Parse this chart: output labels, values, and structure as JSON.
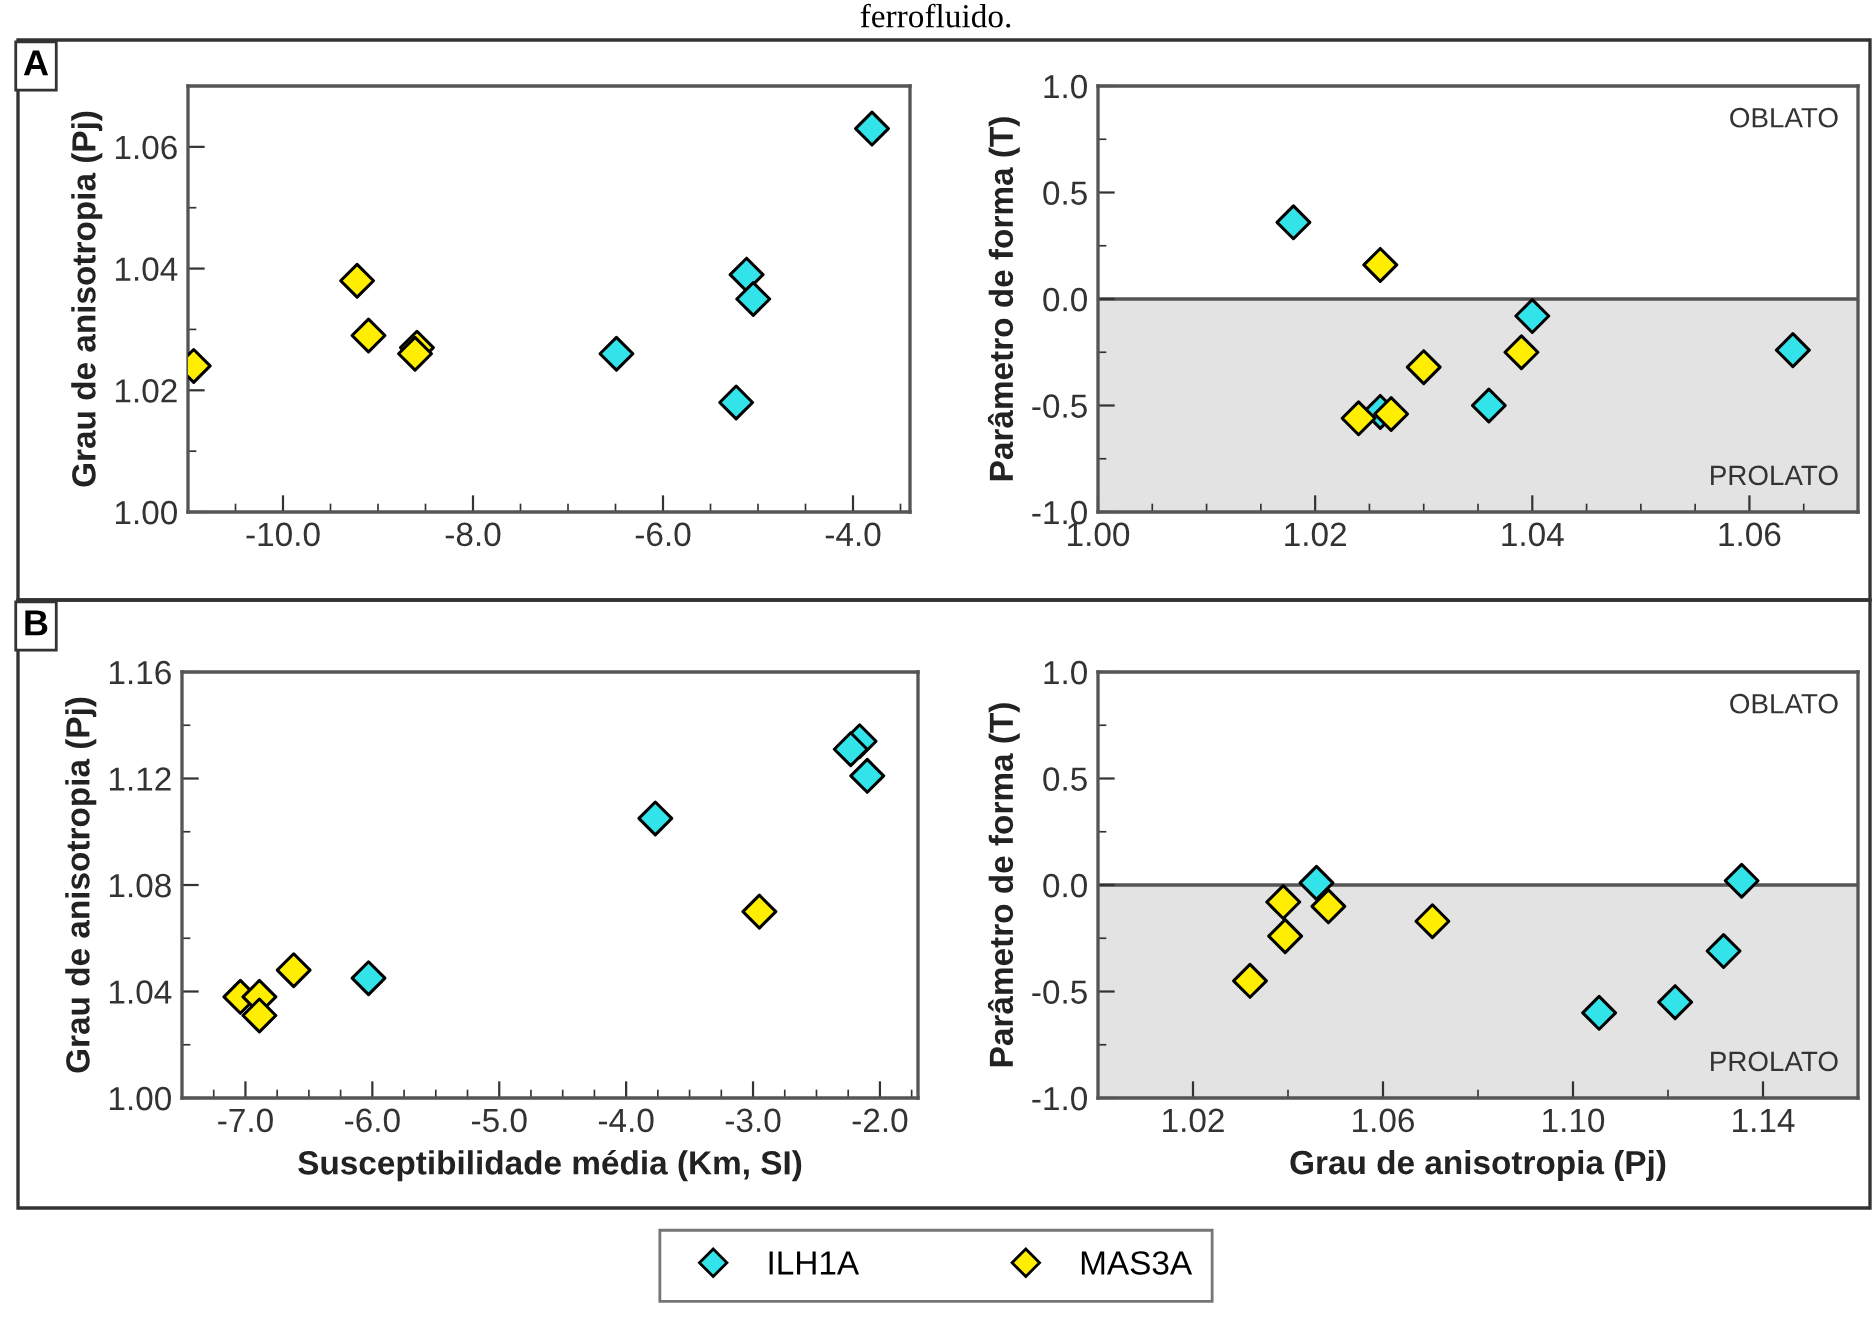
{
  "chart_data": [
    {
      "type": "scatter",
      "title": "ferrofluido.",
      "annotations": [
        "A"
      ],
      "ylabel": "Grau de anisotropia (Pj)",
      "marker": "diamond",
      "grid": false,
      "legend": "bottom",
      "xlim": [
        -11,
        -3.4
      ],
      "xticks": [
        {
          "value": -10,
          "label": "-10.0"
        },
        {
          "value": -8,
          "label": "-8.0"
        },
        {
          "value": -6,
          "label": "-6.0"
        },
        {
          "value": -4,
          "label": "-4.0"
        }
      ],
      "ylim": [
        1.0,
        1.07
      ],
      "yticks": [
        {
          "value": 1.0,
          "label": "1.00"
        },
        1.02,
        1.04,
        1.06
      ],
      "series": [
        {
          "name": "ILH1A",
          "color": "#33e3ea",
          "x": [
            -3.8,
            -5.12,
            -5.05,
            -6.49,
            -5.23
          ],
          "values": [
            1.063,
            1.039,
            1.035,
            1.026,
            1.018
          ]
        },
        {
          "name": "MAS3A",
          "color": "#ffee00",
          "x": [
            -9.22,
            -9.1,
            -8.59,
            -8.61,
            -10.94
          ],
          "values": [
            1.038,
            1.029,
            1.027,
            1.026,
            1.024
          ]
        }
      ]
    },
    {
      "type": "scatter",
      "annotations": [
        "OBLATO"
      ],
      "ylabel": "Parâmetro de forma (T)",
      "marker": "diamond",
      "grid": false,
      "xlim": [
        1.0,
        1.07
      ],
      "xticks": [
        {
          "value": 1.0,
          "label": "1.00"
        },
        1.02,
        1.04,
        1.06
      ],
      "ylim": [
        -1.0,
        1.0
      ],
      "yticks": [
        {
          "value": -1,
          "label": "-1.0"
        },
        -0.5,
        {
          "value": 0,
          "label": "0.0"
        },
        0.5,
        {
          "value": 1,
          "label": "1.0"
        }
      ],
      "ref_lines": [
        {
          "axis": "y",
          "value": 0,
          "color": "#555555"
        }
      ],
      "bands": [
        {
          "axis": "y",
          "from": -1.0,
          "to": 0,
          "label": "PROLATO",
          "color": "#e3e3e3"
        }
      ],
      "series": [
        {
          "color": "#33e3ea",
          "x": [
            1.018,
            1.026,
            1.036,
            1.04,
            1.064
          ],
          "values": [
            0.36,
            -0.53,
            -0.5,
            -0.08,
            -0.24
          ]
        },
        {
          "color": "#ffee00",
          "x": [
            1.026,
            1.024,
            1.027,
            1.03,
            1.039
          ],
          "values": [
            0.16,
            -0.56,
            -0.54,
            -0.32,
            -0.25
          ]
        }
      ]
    },
    {
      "type": "scatter",
      "annotations": [
        "B"
      ],
      "xlabel": "Susceptibilidade média (Km, SI)",
      "ylabel": "Grau de anisotropia (Pj)",
      "marker": "diamond",
      "grid": false,
      "xlim": [
        -7.5,
        -1.7
      ],
      "xticks": [
        {
          "value": -7,
          "label": "-7.0"
        },
        {
          "value": -6,
          "label": "-6.0"
        },
        {
          "value": -5,
          "label": "-5.0"
        },
        {
          "value": -4,
          "label": "-4.0"
        },
        {
          "value": -3,
          "label": "-3.0"
        },
        {
          "value": -2,
          "label": "-2.0"
        }
      ],
      "ylim": [
        1.0,
        1.16
      ],
      "yticks": [
        {
          "value": 1.0,
          "label": "1.00"
        },
        1.04,
        1.08,
        1.12,
        1.16
      ],
      "series": [
        {
          "color": "#33e3ea",
          "x": [
            -2.16,
            -2.23,
            -2.1,
            -3.77,
            -6.03
          ],
          "values": [
            1.134,
            1.131,
            1.121,
            1.105,
            1.045
          ]
        },
        {
          "color": "#ffee00",
          "x": [
            -2.95,
            -6.62,
            -7.04,
            -6.89,
            -6.89
          ],
          "values": [
            1.07,
            1.048,
            1.038,
            1.038,
            1.031
          ]
        }
      ]
    },
    {
      "type": "scatter",
      "annotations": [
        "OBLATO"
      ],
      "xlabel": "Grau de anisotropia (Pj)",
      "ylabel": "Parâmetro de forma (T)",
      "marker": "diamond",
      "grid": false,
      "xlim": [
        1.0,
        1.16
      ],
      "xticks": [
        1.02,
        1.06,
        {
          "value": 1.1,
          "label": "1.10"
        },
        1.14
      ],
      "ylim": [
        -1.0,
        1.0
      ],
      "yticks": [
        {
          "value": -1,
          "label": "-1.0"
        },
        -0.5,
        {
          "value": 0,
          "label": "0.0"
        },
        0.5,
        {
          "value": 1,
          "label": "1.0"
        }
      ],
      "ref_lines": [
        {
          "axis": "y",
          "value": 0,
          "color": "#555555"
        }
      ],
      "bands": [
        {
          "axis": "y",
          "from": -1.0,
          "to": 0,
          "label": "PROLATO",
          "color": "#e3e3e3"
        }
      ],
      "series": [
        {
          "color": "#33e3ea",
          "x": [
            1.046,
            1.1355,
            1.1317,
            1.1215,
            1.1055
          ],
          "values": [
            0.01,
            0.02,
            -0.31,
            -0.55,
            -0.6
          ]
        },
        {
          "color": "#ffee00",
          "x": [
            1.039,
            1.0394,
            1.0485,
            1.032,
            1.0704
          ],
          "values": [
            -0.08,
            -0.24,
            -0.1,
            -0.45,
            -0.17
          ]
        }
      ]
    }
  ]
}
